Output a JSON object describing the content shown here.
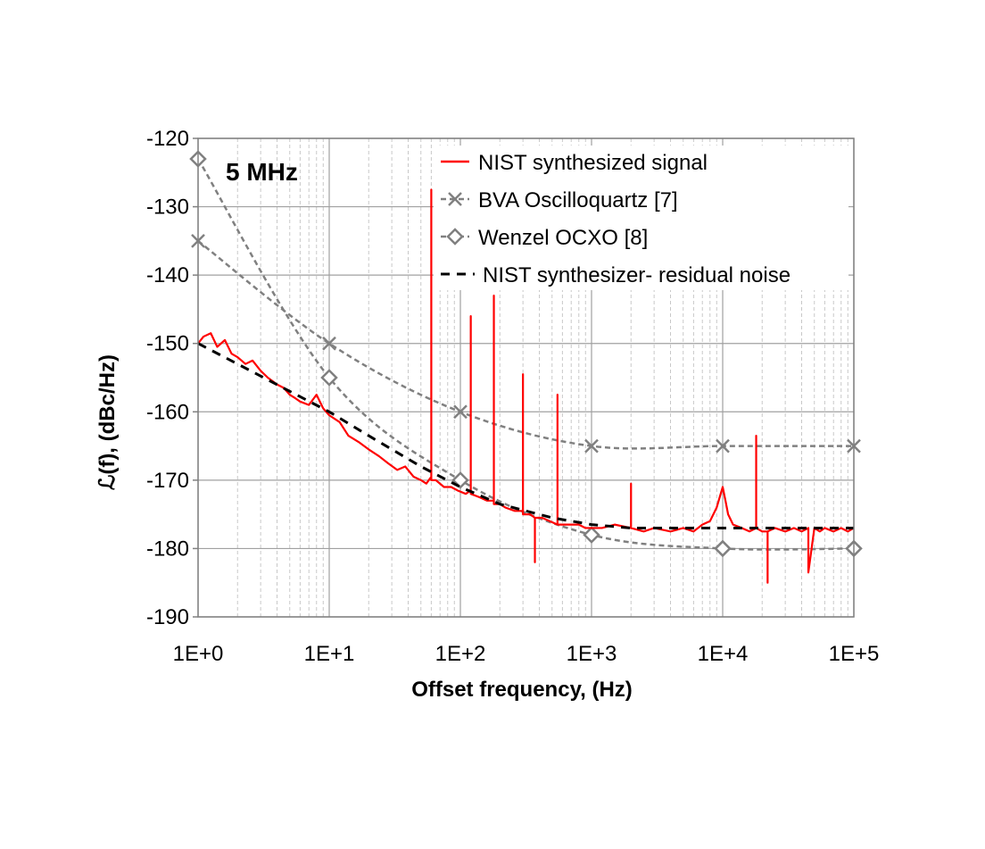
{
  "chart_data": {
    "type": "line",
    "xscale": "log",
    "xlim": [
      1,
      100000
    ],
    "ylim": [
      -190,
      -120
    ],
    "xlabel": "Offset frequency, (Hz)",
    "ylabel": "ℒ(f), (dBc/Hz)",
    "annotation": "5 MHz",
    "grid": {
      "x_major": true,
      "x_minor": true,
      "y_major": true
    },
    "legend_position": "top-right",
    "x_ticks": [
      {
        "value": 1,
        "label": "1E+0"
      },
      {
        "value": 10,
        "label": "1E+1"
      },
      {
        "value": 100,
        "label": "1E+2"
      },
      {
        "value": 1000,
        "label": "1E+3"
      },
      {
        "value": 10000,
        "label": "1E+4"
      },
      {
        "value": 100000,
        "label": "1E+5"
      }
    ],
    "y_ticks": [
      {
        "value": -120,
        "label": "-120"
      },
      {
        "value": -130,
        "label": "-130"
      },
      {
        "value": -140,
        "label": "-140"
      },
      {
        "value": -150,
        "label": "-150"
      },
      {
        "value": -160,
        "label": "-160"
      },
      {
        "value": -170,
        "label": "-170"
      },
      {
        "value": -180,
        "label": "-180"
      },
      {
        "value": -190,
        "label": "-190"
      }
    ],
    "series": [
      {
        "name": "NIST synthesized signal",
        "style": "solid",
        "color": "#ff0000",
        "x": [
          1,
          1.1,
          1.25,
          1.4,
          1.6,
          1.8,
          2.0,
          2.3,
          2.6,
          3.0,
          3.4,
          4.0,
          4.5,
          5.0,
          5.5,
          6.0,
          7.0,
          8.0,
          9.0,
          10,
          12,
          14,
          17,
          20,
          24,
          28,
          33,
          38,
          44,
          50,
          55,
          60,
          60,
          60,
          65,
          75,
          85,
          95,
          110,
          120,
          120,
          120,
          140,
          160,
          180,
          180,
          180,
          200,
          220,
          260,
          300,
          300,
          300,
          340,
          370,
          370,
          370,
          420,
          480,
          550,
          550,
          550,
          620,
          700,
          800,
          900,
          1000,
          1200,
          1500,
          2000,
          2000,
          2000,
          2500,
          3000,
          4000,
          5000,
          6000,
          7000,
          8000,
          9000,
          10000,
          10500,
          11000,
          12000,
          14000,
          16000,
          18000,
          18000,
          18000,
          20000,
          22000,
          22000,
          22000,
          25000,
          30000,
          35000,
          40000,
          45000,
          45000,
          45000,
          50000,
          55000,
          60000,
          70000,
          80000,
          90000,
          100000
        ],
        "y": [
          -150,
          -149,
          -148.5,
          -150.5,
          -149.5,
          -151.5,
          -152,
          -153,
          -152.5,
          -154,
          -155,
          -156,
          -156.5,
          -157.5,
          -158,
          -158.5,
          -159,
          -157.5,
          -159.5,
          -160.5,
          -161.5,
          -163.5,
          -164.5,
          -165.5,
          -166.5,
          -167.5,
          -168.5,
          -168,
          -169.5,
          -170,
          -170.5,
          -169.5,
          -127.5,
          -170,
          -170,
          -171,
          -171,
          -171.5,
          -172,
          -171.5,
          -146,
          -172,
          -172.5,
          -173,
          -173,
          -143,
          -173.5,
          -173.5,
          -174,
          -174.5,
          -174.5,
          -154.5,
          -175,
          -175,
          -175.5,
          -182,
          -175.5,
          -175.5,
          -176,
          -176.5,
          -157.5,
          -176.5,
          -176.5,
          -176.5,
          -176.5,
          -177,
          -177,
          -177,
          -176.5,
          -177,
          -170.5,
          -177,
          -177.5,
          -177,
          -177.5,
          -177,
          -177.5,
          -176.5,
          -176,
          -174,
          -171,
          -173,
          -175,
          -176.5,
          -177,
          -177.5,
          -177,
          -163.5,
          -177,
          -177.5,
          -177.5,
          -185,
          -177.5,
          -177,
          -177.5,
          -177,
          -177.5,
          -177,
          -177.5,
          -183.5,
          -177,
          -177.5,
          -177,
          -177.5,
          -177,
          -177.5,
          -177
        ]
      },
      {
        "name": "BVA Oscilloquartz [7]",
        "style": "dashed",
        "marker": "x",
        "color": "#808080",
        "x": [
          1,
          10,
          100,
          1000,
          10000,
          100000
        ],
        "y": [
          -135,
          -150,
          -160,
          -165,
          -165,
          -165
        ]
      },
      {
        "name": "Wenzel OCXO [8]",
        "style": "dashed",
        "marker": "diamond",
        "color": "#808080",
        "x": [
          1,
          10,
          100,
          1000,
          10000,
          100000
        ],
        "y": [
          -123,
          -155,
          -170,
          -178,
          -180,
          -180
        ]
      },
      {
        "name": "NIST synthesizer- residual noise",
        "style": "dashed",
        "color": "#000000",
        "x": [
          1,
          2,
          5,
          10,
          20,
          50,
          100,
          200,
          500,
          1000,
          2000,
          5000,
          10000,
          100000
        ],
        "y": [
          -150,
          -153,
          -157,
          -160,
          -163.5,
          -168,
          -171,
          -173.5,
          -175.5,
          -176.5,
          -177,
          -177,
          -177,
          -177
        ]
      }
    ]
  }
}
